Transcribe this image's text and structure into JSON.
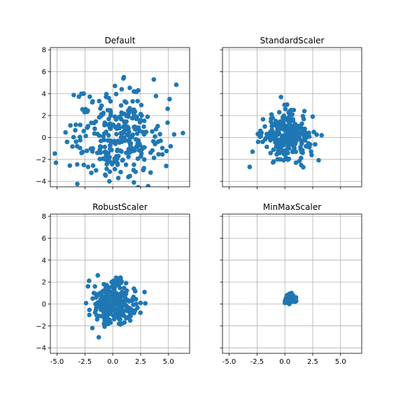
{
  "chart_data": [
    {
      "type": "scatter",
      "title": "Default",
      "xlim": [
        -5.6,
        6.9
      ],
      "ylim": [
        -4.5,
        8.2
      ],
      "xticks": [
        "-5.0",
        "-2.5",
        "0.0",
        "2.5",
        "5.0"
      ],
      "xtick_values": [
        -5,
        -2.5,
        0,
        2.5,
        5
      ],
      "yticks": [
        "−4",
        "−2",
        "0",
        "2",
        "4",
        "6",
        "8"
      ],
      "ytick_values": [
        -4,
        -2,
        0,
        2,
        4,
        6,
        8
      ],
      "show_xticklabels": false,
      "show_yticklabels": true,
      "grid": true,
      "color": "#1f77b4",
      "center": [
        0.3,
        0.2
      ],
      "spread": [
        2.0,
        1.9
      ],
      "points": [
        [
          -5.1,
          -2.3
        ],
        [
          -2.6,
          4.0
        ],
        [
          0.2,
          4.7
        ],
        [
          0.8,
          4.4
        ],
        [
          1.0,
          5.5
        ],
        [
          1.9,
          4.2
        ],
        [
          5.1,
          3.5
        ],
        [
          6.3,
          0.4
        ],
        [
          5.2,
          -0.8
        ],
        [
          4.8,
          -2.6
        ],
        [
          3.4,
          -3.2
        ],
        [
          1.9,
          -4.1
        ],
        [
          -0.3,
          -4.0
        ],
        [
          -2.6,
          -2.5
        ],
        [
          -3.8,
          1.1
        ],
        [
          -4.1,
          -0.4
        ],
        [
          -3.2,
          -0.8
        ],
        [
          -1.0,
          2.9
        ],
        [
          -1.8,
          3.3
        ],
        [
          -0.6,
          3.7
        ],
        [
          -0.2,
          3.3
        ],
        [
          2.6,
          2.0
        ],
        [
          3.8,
          -0.6
        ],
        [
          4.3,
          -0.3
        ],
        [
          -2.4,
          2.5
        ],
        [
          -2.8,
          -1.4
        ],
        [
          1.4,
          -3.6
        ],
        [
          0.5,
          -3.7
        ],
        [
          -1.5,
          -3.0
        ],
        [
          2.8,
          -2.8
        ],
        [
          2.3,
          0.9
        ],
        [
          3.0,
          0.5
        ]
      ]
    },
    {
      "type": "scatter",
      "title": "StandardScaler",
      "xlim": [
        -5.6,
        6.9
      ],
      "ylim": [
        -4.5,
        8.2
      ],
      "xticks": [
        "-5.0",
        "-2.5",
        "0.0",
        "2.5",
        "5.0"
      ],
      "xtick_values": [
        -5,
        -2.5,
        0,
        2.5,
        5
      ],
      "yticks": [
        "−4",
        "−2",
        "0",
        "2",
        "4",
        "6",
        "8"
      ],
      "ytick_values": [
        -4,
        -2,
        0,
        2,
        4,
        6,
        8
      ],
      "show_xticklabels": false,
      "show_yticklabels": false,
      "grid": true,
      "color": "#1f77b4",
      "center": [
        0.1,
        0.0
      ],
      "spread": [
        1.0,
        1.0
      ],
      "points": [
        [
          -2.9,
          -1.3
        ],
        [
          2.5,
          1.9
        ],
        [
          3.3,
          0.2
        ],
        [
          0.2,
          3.0
        ],
        [
          -1.2,
          2.1
        ],
        [
          -2.2,
          0.6
        ],
        [
          -2.0,
          -0.4
        ],
        [
          1.0,
          -2.3
        ],
        [
          -1.0,
          -2.2
        ],
        [
          1.6,
          -1.4
        ],
        [
          2.2,
          -0.9
        ],
        [
          -1.8,
          1.0
        ],
        [
          0.8,
          2.5
        ],
        [
          -0.5,
          2.3
        ],
        [
          2.6,
          0.5
        ],
        [
          -2.4,
          -0.4
        ]
      ]
    },
    {
      "type": "scatter",
      "title": "RobustScaler",
      "xlim": [
        -5.6,
        6.9
      ],
      "ylim": [
        -4.5,
        8.2
      ],
      "xticks": [
        "-5.0",
        "-2.5",
        "0.0",
        "2.5",
        "5.0"
      ],
      "xtick_values": [
        -5,
        -2.5,
        0,
        2.5,
        5
      ],
      "yticks": [
        "−4",
        "−2",
        "0",
        "2",
        "4",
        "6",
        "8"
      ],
      "ytick_values": [
        -4,
        -2,
        0,
        2,
        4,
        6,
        8
      ],
      "show_xticklabels": true,
      "show_yticklabels": true,
      "grid": true,
      "color": "#1f77b4",
      "center": [
        0.1,
        0.1
      ],
      "spread": [
        0.9,
        0.9
      ],
      "points": [
        [
          -2.1,
          -1.0
        ],
        [
          2.5,
          0.1
        ],
        [
          0.3,
          2.4
        ],
        [
          -0.1,
          2.0
        ],
        [
          1.9,
          1.4
        ],
        [
          -1.6,
          1.6
        ],
        [
          -1.4,
          -1.4
        ],
        [
          0.8,
          -1.8
        ],
        [
          -0.2,
          -1.7
        ],
        [
          -1.8,
          0.5
        ],
        [
          1.6,
          -1.1
        ],
        [
          -0.8,
          1.8
        ],
        [
          1.2,
          1.9
        ],
        [
          2.0,
          -0.6
        ]
      ]
    },
    {
      "type": "scatter",
      "title": "MinMaxScaler",
      "xlim": [
        -5.6,
        6.9
      ],
      "ylim": [
        -4.5,
        8.2
      ],
      "xticks": [
        "-5.0",
        "-2.5",
        "0.0",
        "2.5",
        "5.0"
      ],
      "xtick_values": [
        -5,
        -2.5,
        0,
        2.5,
        5
      ],
      "yticks": [
        "−4",
        "−2",
        "0",
        "2",
        "4",
        "6",
        "8"
      ],
      "ytick_values": [
        -4,
        -2,
        0,
        2,
        4,
        6,
        8
      ],
      "show_xticklabels": true,
      "show_yticklabels": false,
      "grid": true,
      "color": "#1f77b4",
      "center": [
        0.45,
        0.45
      ],
      "spread": [
        0.16,
        0.16
      ],
      "points": [
        [
          0.0,
          0.1
        ],
        [
          1.0,
          0.6
        ],
        [
          0.6,
          1.0
        ],
        [
          0.2,
          0.8
        ],
        [
          0.9,
          0.2
        ],
        [
          0.4,
          0.0
        ],
        [
          0.1,
          0.5
        ],
        [
          0.7,
          0.8
        ]
      ]
    }
  ]
}
